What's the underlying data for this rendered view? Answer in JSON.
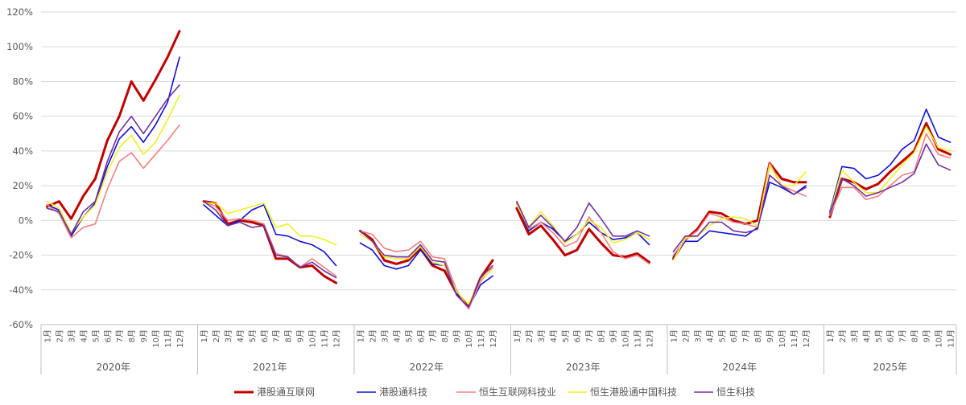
{
  "chart_data": {
    "type": "line",
    "title": "",
    "xlabel": "",
    "ylabel": "",
    "ylim": [
      -60,
      120
    ],
    "yticks": [
      -60,
      -40,
      -20,
      0,
      20,
      40,
      60,
      80,
      100,
      120
    ],
    "ytick_labels": [
      "-60%",
      "-40%",
      "-20%",
      "0%",
      "20%",
      "40%",
      "60%",
      "80%",
      "100%",
      "120%"
    ],
    "grid": true,
    "legend": "bottom",
    "years": [
      {
        "label": "2020年",
        "months": [
          "1月",
          "2月",
          "3月",
          "4月",
          "5月",
          "6月",
          "7月",
          "8月",
          "9月",
          "10月",
          "11月",
          "12月"
        ]
      },
      {
        "label": "2021年",
        "months": [
          "1月",
          "2月",
          "3月",
          "4月",
          "5月",
          "6月",
          "7月",
          "8月",
          "9月",
          "10月",
          "11月",
          "12月"
        ]
      },
      {
        "label": "2022年",
        "months": [
          "1月",
          "2月",
          "3月",
          "4月",
          "5月",
          "6月",
          "7月",
          "8月",
          "9月",
          "10月",
          "11月",
          "12月"
        ]
      },
      {
        "label": "2023年",
        "months": [
          "1月",
          "2月",
          "3月",
          "4月",
          "5月",
          "6月",
          "7月",
          "8月",
          "9月",
          "10月",
          "11月",
          "12月"
        ]
      },
      {
        "label": "2024年",
        "months": [
          "1月",
          "2月",
          "3月",
          "4月",
          "5月",
          "6月",
          "7月",
          "8月",
          "9月",
          "10月",
          "11月",
          "12月"
        ]
      },
      {
        "label": "2025年",
        "months": [
          "1月",
          "2月",
          "3月",
          "4月",
          "5月",
          "6月",
          "7月",
          "8月",
          "9月",
          "10月",
          "11月"
        ]
      }
    ],
    "series": [
      {
        "name": "港股通互联网",
        "color": "#C00000",
        "width": 3,
        "values": [
          [
            8,
            11,
            1,
            14,
            24,
            46,
            60,
            80,
            69,
            81,
            94,
            109
          ],
          [
            11,
            10,
            -2,
            0,
            -1,
            -3,
            -22,
            -22,
            -27,
            -26,
            -32,
            -36
          ],
          [
            -6,
            -11,
            -23,
            -25,
            -23,
            -16,
            -26,
            -29,
            -42,
            -50,
            -33,
            -23
          ],
          [
            7,
            -8,
            -3,
            -11,
            -20,
            -17,
            -5,
            -13,
            -20,
            -21,
            -19,
            -24
          ],
          [
            -22,
            -11,
            -5,
            5,
            4,
            0,
            -2,
            0,
            33,
            24,
            22,
            22
          ],
          [
            2,
            24,
            22,
            18,
            21,
            28,
            34,
            40,
            56,
            41,
            38
          ]
        ]
      },
      {
        "name": "港股通科技",
        "color": "#1010D0",
        "width": 1.6,
        "values": [
          [
            9,
            6,
            -9,
            2,
            10,
            31,
            47,
            54,
            45,
            55,
            68,
            94
          ],
          [
            9,
            3,
            -3,
            0,
            6,
            9,
            -8,
            -9,
            -12,
            -14,
            -18,
            -26
          ],
          [
            -13,
            -17,
            -26,
            -28,
            -26,
            -17,
            -25,
            -26,
            -42,
            -50,
            -37,
            -32
          ],
          [
            10,
            -6,
            -1,
            -5,
            -12,
            -8,
            -1,
            -7,
            -11,
            -10,
            -7,
            -14
          ],
          [
            -21,
            -12,
            -12,
            -6,
            -7,
            -8,
            -9,
            -4,
            22,
            19,
            15,
            20
          ],
          [
            5,
            31,
            30,
            24,
            26,
            32,
            41,
            46,
            64,
            48,
            45
          ]
        ]
      },
      {
        "name": "恒生互联网科技业",
        "color": "#F08080",
        "width": 1.6,
        "values": [
          [
            9,
            4,
            -10,
            -4,
            -2,
            18,
            34,
            39,
            30,
            38,
            46,
            55
          ],
          [
            11,
            8,
            0,
            1,
            0,
            -2,
            -19,
            -21,
            -27,
            -22,
            -27,
            -32
          ],
          [
            -6,
            -8,
            -16,
            -18,
            -17,
            -12,
            -21,
            -22,
            -40,
            -51,
            -35,
            -27
          ],
          [
            10,
            -5,
            -1,
            -7,
            -15,
            -12,
            2,
            -7,
            -18,
            -22,
            -20,
            -25
          ],
          [
            -20,
            -11,
            -6,
            4,
            2,
            -1,
            -2,
            -4,
            33,
            20,
            17,
            14
          ],
          [
            3,
            19,
            19,
            12,
            14,
            20,
            26,
            28,
            50,
            38,
            36
          ]
        ]
      },
      {
        "name": "恒生港股通中国科技",
        "color": "#F0F020",
        "width": 1.6,
        "values": [
          [
            11,
            7,
            -7,
            2,
            9,
            28,
            42,
            49,
            38,
            45,
            58,
            72
          ],
          [
            10,
            10,
            4,
            6,
            8,
            10,
            -4,
            -2,
            -9,
            -9,
            -11,
            -14
          ],
          [
            -8,
            -12,
            -21,
            -22,
            -22,
            -15,
            -24,
            -26,
            -41,
            -48,
            -34,
            -28
          ],
          [
            9,
            -4,
            5,
            -3,
            -13,
            -8,
            0,
            -4,
            -13,
            -11,
            -7,
            -11
          ],
          [
            -23,
            -10,
            -9,
            -3,
            1,
            2,
            1,
            -3,
            32,
            20,
            20,
            28
          ],
          [
            4,
            29,
            22,
            16,
            16,
            24,
            32,
            39,
            54,
            42,
            40
          ]
        ]
      },
      {
        "name": "恒生科技",
        "color": "#7030A0",
        "width": 1.6,
        "values": [
          [
            7,
            5,
            -8,
            5,
            11,
            34,
            51,
            60,
            50,
            60,
            70,
            78
          ],
          [
            11,
            6,
            -3,
            -1,
            -4,
            -3,
            -20,
            -21,
            -27,
            -24,
            -29,
            -33
          ],
          [
            -6,
            -12,
            -20,
            -21,
            -21,
            -14,
            -23,
            -24,
            -43,
            -50,
            -33,
            -26
          ],
          [
            11,
            -4,
            3,
            -4,
            -12,
            -4,
            10,
            1,
            -9,
            -9,
            -6,
            -9
          ],
          [
            -18,
            -9,
            -9,
            -1,
            -1,
            -6,
            -7,
            -5,
            26,
            20,
            15,
            19
          ],
          [
            4,
            24,
            20,
            14,
            16,
            19,
            22,
            27,
            44,
            32,
            29
          ]
        ]
      }
    ]
  }
}
